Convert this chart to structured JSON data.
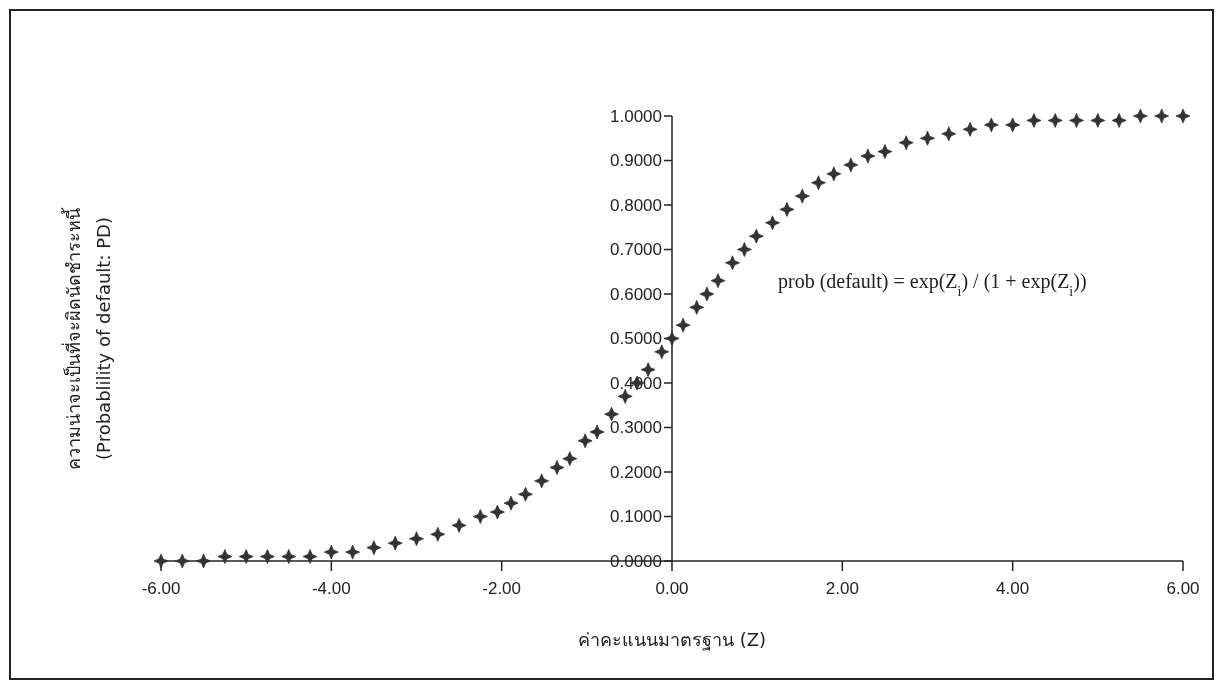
{
  "chart_data": {
    "type": "scatter",
    "ylabel": "ความน่าจะเป็นที่จะผิดนัดชำระหนี้\n(Probablility of default: PD)",
    "xlabel": "ค่าคะแนนมาตรฐาน (Z)",
    "annotations": [
      "prob (default) = exp(Z$_{i}$) / (1 + exp(Z$_{i}$))"
    ],
    "x": [
      -6,
      -5.75,
      -5.5,
      -5.25,
      -5,
      -4.75,
      -4.5,
      -4.25,
      -4,
      -3.75,
      -3.5,
      -3.25,
      -3,
      -2.75,
      -2.5,
      -2.25,
      -2.05,
      -1.89,
      -1.72,
      -1.53,
      -1.35,
      -1.2,
      -1.02,
      -0.88,
      -0.71,
      -0.55,
      -0.41,
      -0.28,
      -0.12,
      0,
      0.13,
      0.29,
      0.41,
      0.54,
      0.71,
      0.85,
      0.99,
      1.18,
      1.35,
      1.53,
      1.72,
      1.9,
      2.1,
      2.3,
      2.5,
      2.75,
      3,
      3.25,
      3.5,
      3.75,
      4,
      4.25,
      4.5,
      4.75,
      5,
      5.25,
      5.5,
      5.75,
      6
    ],
    "series": [
      {
        "color": "#333333",
        "values": [
          0.0,
          0.0,
          0.0,
          0.01,
          0.01,
          0.01,
          0.01,
          0.01,
          0.02,
          0.02,
          0.03,
          0.04,
          0.05,
          0.06,
          0.08,
          0.1,
          0.11,
          0.13,
          0.15,
          0.18,
          0.21,
          0.23,
          0.27,
          0.29,
          0.33,
          0.37,
          0.4,
          0.43,
          0.47,
          0.5,
          0.53,
          0.57,
          0.6,
          0.63,
          0.67,
          0.7,
          0.73,
          0.76,
          0.79,
          0.82,
          0.85,
          0.87,
          0.89,
          0.91,
          0.92,
          0.94,
          0.95,
          0.96,
          0.97,
          0.98,
          0.98,
          0.99,
          0.99,
          0.99,
          0.99,
          0.99,
          1.0,
          1.0,
          1.0
        ]
      }
    ],
    "xlim": [
      -6,
      6
    ],
    "xticks": [
      {
        "value": -6,
        "label": "-6.00"
      },
      {
        "value": -4,
        "label": "-4.00"
      },
      {
        "value": -2,
        "label": "-2.00"
      },
      {
        "value": 0,
        "label": "0.00"
      },
      {
        "value": 2,
        "label": "2.00"
      },
      {
        "value": 4,
        "label": "4.00"
      },
      {
        "value": 6,
        "label": "6.00"
      }
    ],
    "ylim": [
      0,
      1
    ],
    "yticks": [
      {
        "value": 0,
        "label": "0.0000"
      },
      {
        "value": 0.1,
        "label": "0.1000"
      },
      {
        "value": 0.2,
        "label": "0.2000"
      },
      {
        "value": 0.3,
        "label": "0.3000"
      },
      {
        "value": 0.4,
        "label": "0.4000"
      },
      {
        "value": 0.5,
        "label": "0.5000"
      },
      {
        "value": 0.6,
        "label": "0.6000"
      },
      {
        "value": 0.7,
        "label": "0.7000"
      },
      {
        "value": 0.8,
        "label": "0.8000"
      },
      {
        "value": 0.9,
        "label": "0.9000"
      },
      {
        "value": 1,
        "label": "1.0000"
      }
    ],
    "marker": "star",
    "grid": false
  }
}
